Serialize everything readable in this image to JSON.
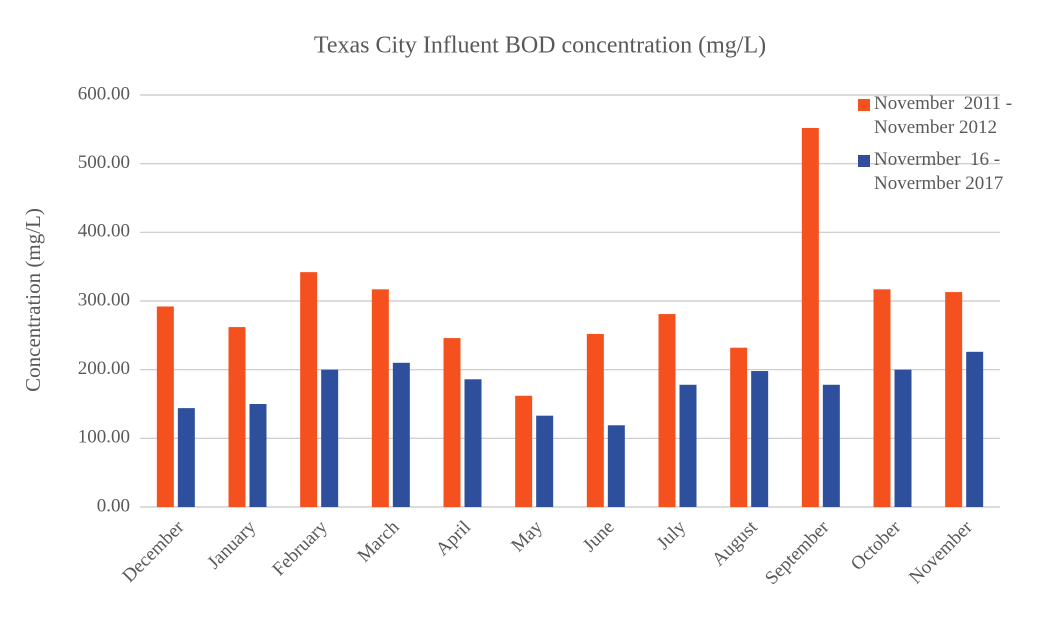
{
  "chart_data": {
    "type": "bar",
    "title": "Texas City Influent BOD concentration (mg/L)",
    "y_label": "Concentration (mg/L)",
    "categories": [
      "December",
      "January",
      "February",
      "March",
      "April",
      "May",
      "June",
      "July",
      "August",
      "September",
      "October",
      "November"
    ],
    "series": [
      {
        "name": "November  2011 - November 2012",
        "color": "#f4511e",
        "values": [
          292,
          262,
          342,
          317,
          246,
          162,
          252,
          281,
          232,
          552,
          317,
          313
        ]
      },
      {
        "name": "Novermber  16 - Novermber 2017",
        "color": "#2e4f9b",
        "values": [
          144,
          150,
          200,
          210,
          186,
          133,
          119,
          178,
          198,
          178,
          200,
          226
        ]
      }
    ],
    "ylim": [
      0,
      600
    ],
    "yticks": [
      {
        "value": 0,
        "label": "0.00"
      },
      {
        "value": 100,
        "label": "100.00"
      },
      {
        "value": 200,
        "label": "200.00"
      },
      {
        "value": 300,
        "label": "300.00"
      },
      {
        "value": 400,
        "label": "400.00"
      },
      {
        "value": 500,
        "label": "500.00"
      },
      {
        "value": 600,
        "label": "600.00"
      }
    ],
    "grid": true
  }
}
